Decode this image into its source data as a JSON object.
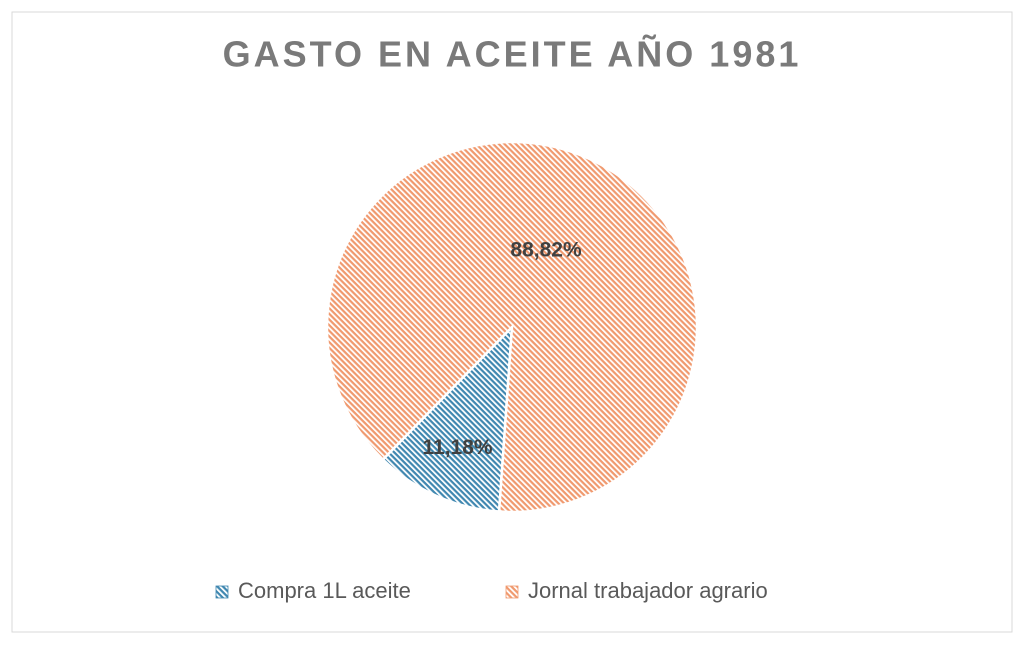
{
  "chart_data": {
    "type": "pie",
    "title": "GASTO EN ACEITE AÑO 1981",
    "categories": [
      "Compra 1L aceite",
      "Jornal trabajador agrario"
    ],
    "values": [
      11.18,
      88.82
    ],
    "value_labels": [
      "11,18%",
      "88,82%"
    ],
    "colors": [
      "#3f87b0",
      "#f0996e"
    ],
    "legend": "bottom"
  }
}
